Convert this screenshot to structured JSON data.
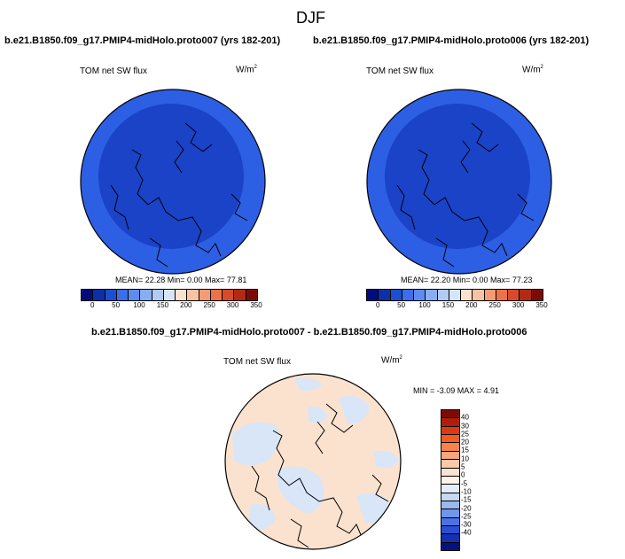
{
  "page": {
    "title": "DJF"
  },
  "panels": [
    {
      "case_title": "b.e21.B1850.f09_g17.PMIP4-midHolo.proto007 (yrs 182-201)",
      "variable": "TOM net SW flux",
      "units": "W/m",
      "units_exp": "2",
      "stats": "MEAN=  22.28  Min=   0.00  Max=  77.81"
    },
    {
      "case_title": "b.e21.B1850.f09_g17.PMIP4-midHolo.proto006 (yrs 182-201)",
      "variable": "TOM net SW flux",
      "units": "W/m",
      "units_exp": "2",
      "stats": "MEAN=  22.20  Min=   0.00  Max=  77.23"
    }
  ],
  "diff": {
    "title": "b.e21.B1850.f09_g17.PMIP4-midHolo.proto007 - b.e21.B1850.f09_g17.PMIP4-midHolo.proto006",
    "variable": "TOM net SW flux",
    "units": "W/m",
    "units_exp": "2",
    "stats": "MIN =  -3.09 MAX =   4.91"
  },
  "colorbar_abs": {
    "colors": [
      "#000c7e",
      "#0e2fa8",
      "#1b4fd0",
      "#3b6ee8",
      "#5c8cf0",
      "#86aef2",
      "#b0cbf4",
      "#d6e4f7",
      "#fbe2d0",
      "#f9c2a3",
      "#f59b74",
      "#ee7249",
      "#d84b2a",
      "#b32a14",
      "#7d0b05"
    ],
    "ticks": [
      "0",
      "50",
      "100",
      "150",
      "200",
      "250",
      "300",
      "350"
    ]
  },
  "colorbar_diff": {
    "colors": [
      "#7d0b05",
      "#b01e0b",
      "#dc3a10",
      "#f25c1e",
      "#f7834a",
      "#f9a77a",
      "#fbc8a8",
      "#fce3cf",
      "#fef3e8",
      "#e3ecf8",
      "#c5d8f4",
      "#9ab9ef",
      "#6f96ea",
      "#4a72e2",
      "#2b4fd2",
      "#1530b0",
      "#05127e"
    ],
    "ticks": [
      "40",
      "30",
      "25",
      "20",
      "15",
      "10",
      "5",
      "0",
      "-5",
      "-10",
      "-15",
      "-20",
      "-25",
      "-30",
      "-40"
    ]
  }
}
